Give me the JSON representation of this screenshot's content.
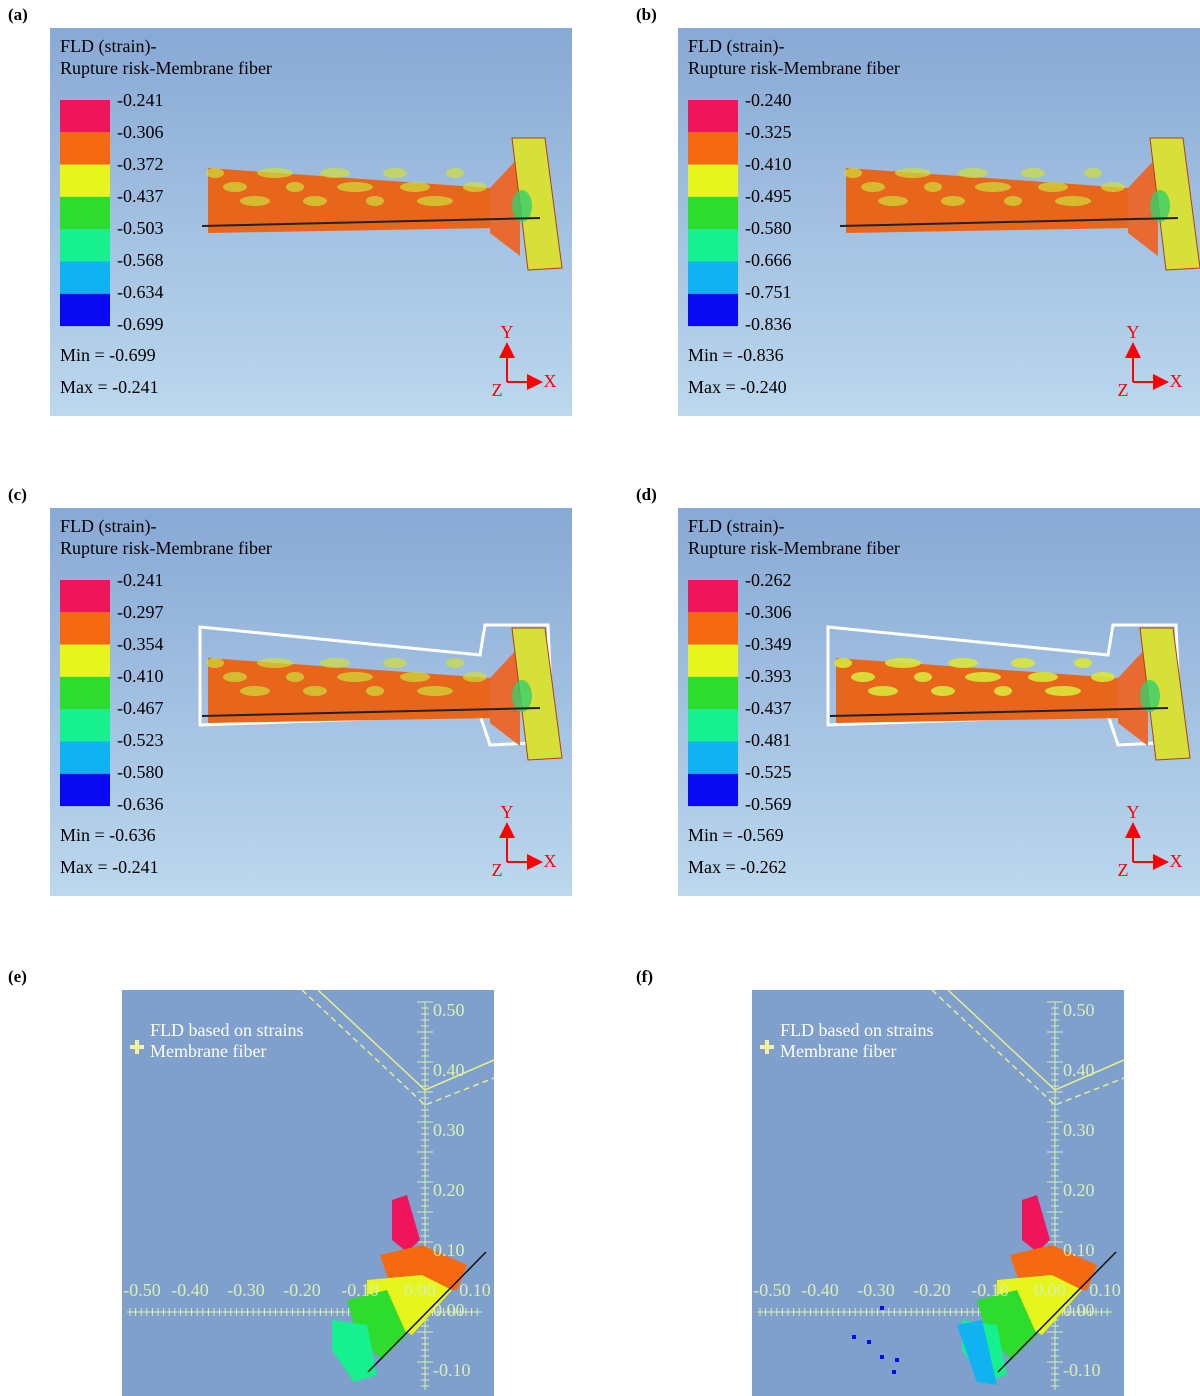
{
  "panels": [
    {
      "label": "(a)",
      "title_line1": "FLD (strain)-",
      "title_line2": "Rupture risk-Membrane fiber",
      "legend": [
        "-0.241",
        "-0.306",
        "-0.372",
        "-0.437",
        "-0.503",
        "-0.568",
        "-0.634",
        "-0.699"
      ],
      "min": "Min = -0.699",
      "max": "Max = -0.241",
      "axes": {
        "y": "Y",
        "z": "Z",
        "x": "X"
      }
    },
    {
      "label": "(b)",
      "title_line1": "FLD (strain)-",
      "title_line2": "Rupture risk-Membrane fiber",
      "legend": [
        "-0.240",
        "-0.325",
        "-0.410",
        "-0.495",
        "-0.580",
        "-0.666",
        "-0.751",
        "-0.836"
      ],
      "min": "Min = -0.836",
      "max": "Max = -0.240",
      "axes": {
        "y": "Y",
        "z": "Z",
        "x": "X"
      }
    },
    {
      "label": "(c)",
      "title_line1": "FLD (strain)-",
      "title_line2": "Rupture risk-Membrane fiber",
      "legend": [
        "-0.241",
        "-0.297",
        "-0.354",
        "-0.410",
        "-0.467",
        "-0.523",
        "-0.580",
        "-0.636"
      ],
      "min": "Min = -0.636",
      "max": "Max = -0.241",
      "axes": {
        "y": "Y",
        "z": "Z",
        "x": "X"
      }
    },
    {
      "label": "(d)",
      "title_line1": "FLD (strain)-",
      "title_line2": "Rupture risk-Membrane fiber",
      "legend": [
        "-0.262",
        "-0.306",
        "-0.349",
        "-0.393",
        "-0.437",
        "-0.481",
        "-0.525",
        "-0.569"
      ],
      "min": "Min = -0.569",
      "max": "Max = -0.262",
      "axes": {
        "y": "Y",
        "z": "Z",
        "x": "X"
      }
    }
  ],
  "fld_panels": [
    {
      "label": "(e)",
      "title_line1": "FLD based on strains",
      "title_line2": "Membrane fiber",
      "x_ticks": [
        "-0.50",
        "-0.40",
        "-0.30",
        "-0.20",
        "-0.10",
        "0.00",
        "0.10"
      ],
      "y_ticks": [
        "0.50",
        "0.40",
        "0.30",
        "0.20",
        "0.10",
        "0.00",
        "-0.10"
      ]
    },
    {
      "label": "(f)",
      "title_line1": "FLD based on strains",
      "title_line2": "Membrane fiber",
      "x_ticks": [
        "-0.50",
        "-0.40",
        "-0.30",
        "-0.20",
        "-0.10",
        "0.00",
        "0.10"
      ],
      "y_ticks": [
        "0.50",
        "0.40",
        "0.30",
        "0.20",
        "0.10",
        "0.00",
        "-0.10"
      ]
    }
  ]
}
